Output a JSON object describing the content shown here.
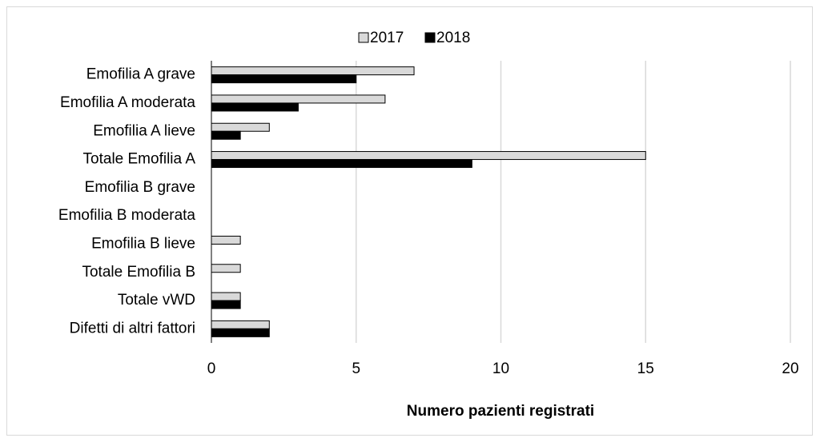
{
  "chart_data": {
    "type": "bar",
    "orientation": "horizontal",
    "categories": [
      "Emofilia A grave",
      "Emofilia A moderata",
      "Emofilia A lieve",
      "Totale Emofilia A",
      "Emofilia B grave",
      "Emofilia B moderata",
      "Emofilia B lieve",
      "Totale Emofilia B",
      "Totale vWD",
      "Difetti di altri fattori"
    ],
    "series": [
      {
        "name": "2017",
        "color": "#d9d9d9",
        "values": [
          7,
          6,
          2,
          15,
          0,
          0,
          1,
          1,
          1,
          2
        ]
      },
      {
        "name": "2018",
        "color": "#000000",
        "values": [
          5,
          3,
          1,
          9,
          0,
          0,
          0,
          0,
          1,
          2
        ]
      }
    ],
    "xlim": [
      0,
      20
    ],
    "xticks": [
      0,
      5,
      10,
      15,
      20
    ],
    "x_axis_label": "Numero pazienti registrati",
    "grid": true,
    "legend": "top"
  }
}
